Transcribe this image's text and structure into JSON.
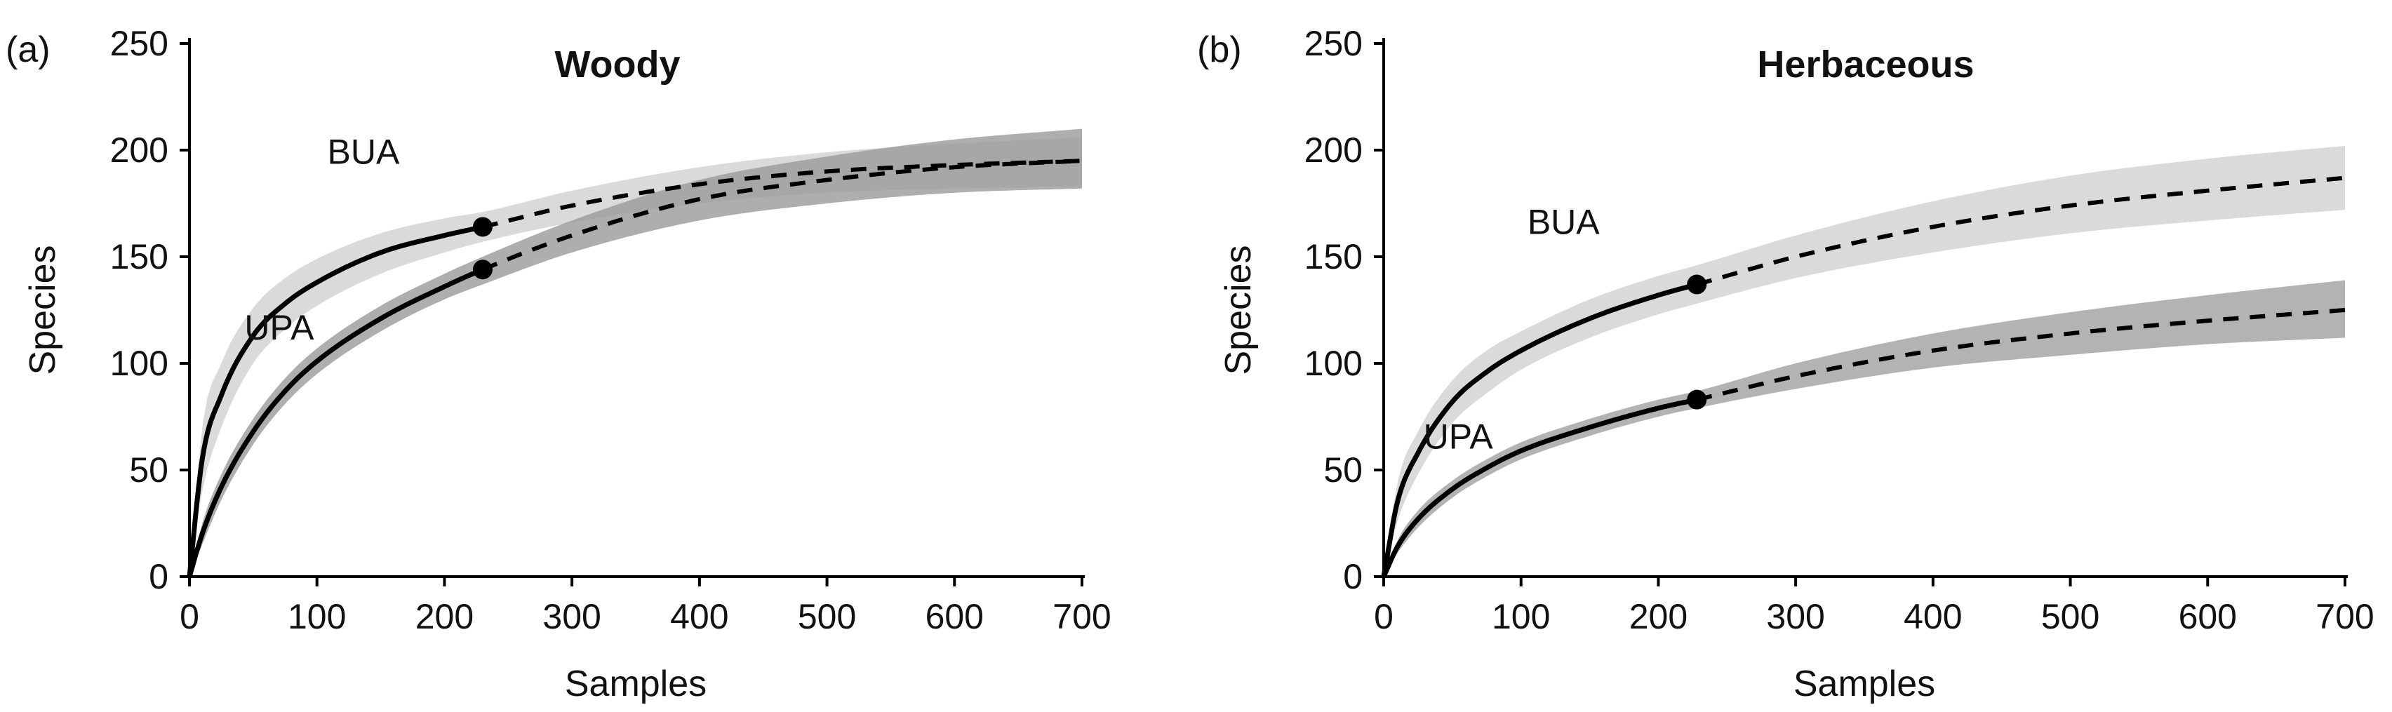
{
  "chart_data": [
    {
      "type": "line",
      "panel_label": "(a)",
      "title": "Woody",
      "xlabel": "Samples",
      "ylabel": "Species",
      "xlim": [
        0,
        700
      ],
      "ylim": [
        0,
        250
      ],
      "xticks": [
        0,
        100,
        200,
        300,
        400,
        500,
        600,
        700
      ],
      "yticks": [
        0,
        50,
        100,
        150,
        200,
        250
      ],
      "grid": false,
      "series": [
        {
          "name": "BUA",
          "color": "#000000",
          "band_color": "#d3d3d3",
          "observed_end_samples": 230,
          "observed_end_species": 164,
          "x": [
            0,
            10,
            25,
            50,
            75,
            100,
            150,
            200,
            230,
            300,
            400,
            500,
            600,
            700
          ],
          "y": [
            0,
            55,
            85,
            113,
            128,
            138,
            152,
            160,
            164,
            174,
            184,
            190,
            193,
            195
          ],
          "lower": [
            0,
            40,
            70,
            100,
            116,
            127,
            142,
            152,
            157,
            166,
            175,
            180,
            182,
            183
          ],
          "upper": [
            0,
            70,
            100,
            126,
            140,
            149,
            161,
            168,
            171,
            181,
            192,
            199,
            203,
            206
          ]
        },
        {
          "name": "UPA",
          "color": "#000000",
          "band_color": "#9a9a9a",
          "observed_end_samples": 230,
          "observed_end_species": 144,
          "x": [
            0,
            10,
            25,
            50,
            75,
            100,
            150,
            200,
            230,
            300,
            400,
            500,
            600,
            700
          ],
          "y": [
            0,
            20,
            42,
            68,
            87,
            101,
            121,
            136,
            144,
            160,
            177,
            186,
            192,
            195
          ],
          "lower": [
            0,
            15,
            36,
            62,
            81,
            95,
            115,
            130,
            137,
            152,
            167,
            175,
            180,
            182
          ],
          "upper": [
            0,
            25,
            48,
            74,
            93,
            107,
            127,
            142,
            150,
            167,
            186,
            197,
            205,
            210
          ]
        }
      ]
    },
    {
      "type": "line",
      "panel_label": "(b)",
      "title": "Herbaceous",
      "xlabel": "Samples",
      "ylabel": "Species",
      "xlim": [
        0,
        700
      ],
      "ylim": [
        0,
        250
      ],
      "xticks": [
        0,
        100,
        200,
        300,
        400,
        500,
        600,
        700
      ],
      "yticks": [
        0,
        50,
        100,
        150,
        200,
        250
      ],
      "grid": false,
      "series": [
        {
          "name": "BUA",
          "color": "#000000",
          "band_color": "#d3d3d3",
          "observed_end_samples": 228,
          "observed_end_species": 137,
          "x": [
            0,
            10,
            25,
            50,
            75,
            100,
            150,
            200,
            228,
            300,
            400,
            500,
            600,
            700
          ],
          "y": [
            0,
            35,
            58,
            82,
            96,
            106,
            121,
            132,
            137,
            150,
            164,
            174,
            181,
            187
          ],
          "lower": [
            0,
            26,
            48,
            72,
            86,
            97,
            112,
            123,
            128,
            140,
            152,
            161,
            167,
            172
          ],
          "upper": [
            0,
            44,
            68,
            92,
            106,
            115,
            130,
            141,
            146,
            160,
            176,
            188,
            196,
            202
          ]
        },
        {
          "name": "UPA",
          "color": "#000000",
          "band_color": "#a0a0a0",
          "observed_end_samples": 228,
          "observed_end_species": 83,
          "x": [
            0,
            10,
            25,
            50,
            75,
            100,
            150,
            200,
            228,
            300,
            400,
            500,
            600,
            700
          ],
          "y": [
            0,
            14,
            27,
            41,
            51,
            59,
            70,
            79,
            83,
            94,
            106,
            114,
            120,
            125
          ],
          "lower": [
            0,
            11,
            23,
            37,
            47,
            55,
            66,
            75,
            79,
            88,
            98,
            104,
            109,
            112
          ],
          "upper": [
            0,
            17,
            31,
            45,
            55,
            63,
            74,
            83,
            87,
            100,
            114,
            124,
            132,
            139
          ]
        }
      ]
    }
  ]
}
